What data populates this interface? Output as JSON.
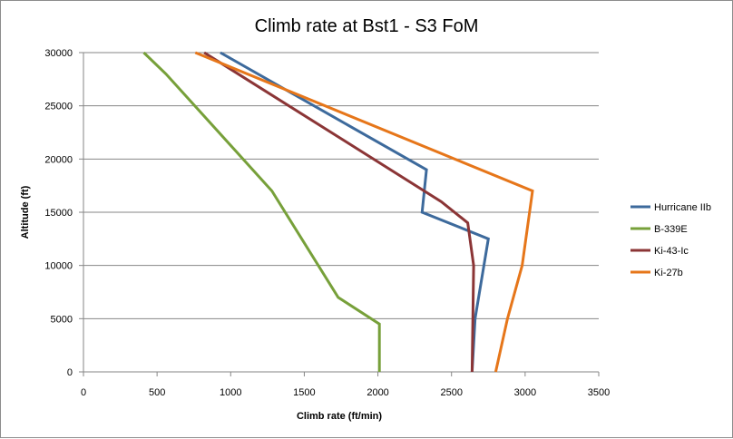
{
  "chart_data": {
    "type": "line",
    "title": "Climb rate at Bst1 - S3 FoM",
    "xlabel": "Climb rate (ft/min)",
    "ylabel": "Altitude (ft)",
    "xlim": [
      0,
      3500
    ],
    "ylim": [
      0,
      30000
    ],
    "xticks": [
      0,
      500,
      1000,
      1500,
      2000,
      2500,
      3000,
      3500
    ],
    "yticks": [
      0,
      5000,
      10000,
      15000,
      20000,
      25000,
      30000
    ],
    "grid": "horizontal",
    "legend": "right",
    "series": [
      {
        "name": "Hurricane IIb",
        "color": "#3d6a9c",
        "points": [
          [
            2640,
            0
          ],
          [
            2660,
            5000
          ],
          [
            2750,
            12500
          ],
          [
            2300,
            15000
          ],
          [
            2330,
            19000
          ],
          [
            930,
            30000
          ]
        ]
      },
      {
        "name": "B-339E",
        "color": "#77a03a",
        "points": [
          [
            2010,
            0
          ],
          [
            2010,
            4500
          ],
          [
            1730,
            7000
          ],
          [
            1280,
            17000
          ],
          [
            560,
            28000
          ],
          [
            410,
            30000
          ]
        ]
      },
      {
        "name": "Ki-43-Ic",
        "color": "#8b3536",
        "points": [
          [
            2640,
            0
          ],
          [
            2650,
            10000
          ],
          [
            2610,
            14000
          ],
          [
            2430,
            16000
          ],
          [
            820,
            30000
          ]
        ]
      },
      {
        "name": "Ki-27b",
        "color": "#e6761a",
        "points": [
          [
            2800,
            0
          ],
          [
            2880,
            5000
          ],
          [
            2980,
            10000
          ],
          [
            3050,
            17000
          ],
          [
            760,
            30000
          ]
        ]
      }
    ]
  }
}
